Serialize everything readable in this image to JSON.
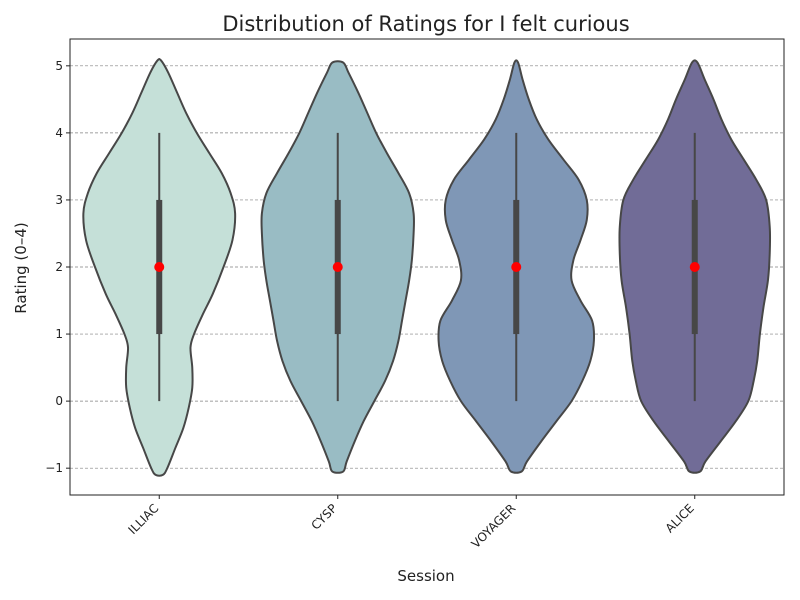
{
  "chart_data": {
    "type": "violin",
    "title": "Distribution of Ratings for I felt curious",
    "xlabel": "Session",
    "ylabel": "Rating (0–4)",
    "ylim": [
      -1.4,
      5.4
    ],
    "yticks": [
      -1,
      0,
      1,
      2,
      3,
      4,
      5
    ],
    "grid": "horizontal dashed",
    "categories": [
      "ILLIAC",
      "CYSP",
      "VOYAGER",
      "ALICE"
    ],
    "colors": [
      "#c5e0d8",
      "#99bcc4",
      "#7f97b6",
      "#716c97"
    ],
    "violins": [
      {
        "name": "ILLIAC",
        "median": 2,
        "q1": 1,
        "q3": 3,
        "whisker_low": 0,
        "whisker_high": 4,
        "profile": [
          [
            -1.1,
            0.04
          ],
          [
            -1.0,
            0.09
          ],
          [
            -0.7,
            0.18
          ],
          [
            -0.4,
            0.27
          ],
          [
            -0.1,
            0.33
          ],
          [
            0.2,
            0.37
          ],
          [
            0.5,
            0.37
          ],
          [
            0.8,
            0.35
          ],
          [
            1.0,
            0.39
          ],
          [
            1.3,
            0.49
          ],
          [
            1.6,
            0.6
          ],
          [
            2.0,
            0.72
          ],
          [
            2.4,
            0.82
          ],
          [
            2.8,
            0.85
          ],
          [
            3.1,
            0.8
          ],
          [
            3.4,
            0.7
          ],
          [
            3.7,
            0.56
          ],
          [
            4.0,
            0.42
          ],
          [
            4.3,
            0.3
          ],
          [
            4.6,
            0.2
          ],
          [
            4.9,
            0.1
          ],
          [
            5.08,
            0.02
          ]
        ]
      },
      {
        "name": "CYSP",
        "median": 2,
        "q1": 1,
        "q3": 3,
        "whisker_low": 0,
        "whisker_high": 4,
        "profile": [
          [
            -1.05,
            0.06
          ],
          [
            -0.9,
            0.1
          ],
          [
            -0.6,
            0.19
          ],
          [
            -0.3,
            0.29
          ],
          [
            0.0,
            0.41
          ],
          [
            0.3,
            0.53
          ],
          [
            0.6,
            0.62
          ],
          [
            0.9,
            0.68
          ],
          [
            1.2,
            0.72
          ],
          [
            1.5,
            0.76
          ],
          [
            1.8,
            0.8
          ],
          [
            2.1,
            0.83
          ],
          [
            2.5,
            0.85
          ],
          [
            2.8,
            0.85
          ],
          [
            3.1,
            0.8
          ],
          [
            3.4,
            0.68
          ],
          [
            3.7,
            0.55
          ],
          [
            4.0,
            0.43
          ],
          [
            4.3,
            0.33
          ],
          [
            4.6,
            0.23
          ],
          [
            4.9,
            0.12
          ],
          [
            5.05,
            0.06
          ]
        ]
      },
      {
        "name": "VOYAGER",
        "median": 2,
        "q1": 1,
        "q3": 3,
        "whisker_low": 0,
        "whisker_high": 4,
        "profile": [
          [
            -1.05,
            0.06
          ],
          [
            -0.9,
            0.12
          ],
          [
            -0.6,
            0.28
          ],
          [
            -0.3,
            0.45
          ],
          [
            0.0,
            0.62
          ],
          [
            0.3,
            0.74
          ],
          [
            0.6,
            0.83
          ],
          [
            0.9,
            0.87
          ],
          [
            1.2,
            0.85
          ],
          [
            1.5,
            0.72
          ],
          [
            1.8,
            0.62
          ],
          [
            2.1,
            0.64
          ],
          [
            2.4,
            0.72
          ],
          [
            2.7,
            0.79
          ],
          [
            3.0,
            0.79
          ],
          [
            3.3,
            0.7
          ],
          [
            3.6,
            0.53
          ],
          [
            3.9,
            0.36
          ],
          [
            4.2,
            0.23
          ],
          [
            4.5,
            0.14
          ],
          [
            4.8,
            0.07
          ],
          [
            5.05,
            0.02
          ]
        ]
      },
      {
        "name": "ALICE",
        "median": 2,
        "q1": 1,
        "q3": 3,
        "whisker_low": 0,
        "whisker_high": 4,
        "profile": [
          [
            -1.05,
            0.06
          ],
          [
            -0.9,
            0.12
          ],
          [
            -0.6,
            0.29
          ],
          [
            -0.3,
            0.46
          ],
          [
            0.0,
            0.6
          ],
          [
            0.3,
            0.66
          ],
          [
            0.6,
            0.7
          ],
          [
            1.0,
            0.73
          ],
          [
            1.4,
            0.77
          ],
          [
            1.8,
            0.82
          ],
          [
            2.2,
            0.84
          ],
          [
            2.6,
            0.84
          ],
          [
            3.0,
            0.8
          ],
          [
            3.3,
            0.69
          ],
          [
            3.6,
            0.55
          ],
          [
            3.9,
            0.41
          ],
          [
            4.2,
            0.3
          ],
          [
            4.5,
            0.21
          ],
          [
            4.8,
            0.11
          ],
          [
            5.05,
            0.03
          ]
        ]
      }
    ]
  }
}
